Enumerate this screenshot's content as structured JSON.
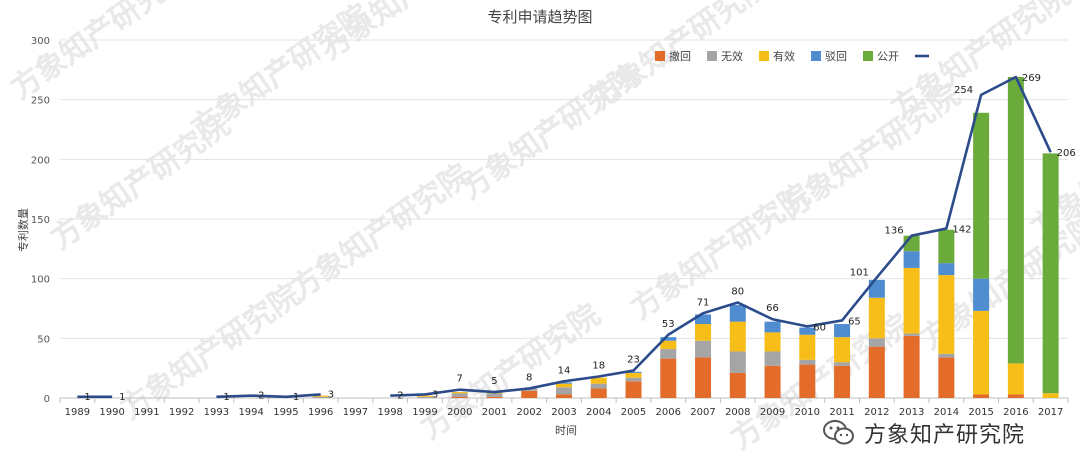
{
  "chart_data": {
    "type": "bar",
    "title": "专利申请趋势图",
    "xlabel": "时间",
    "ylabel": "专利数量",
    "ylim": [
      0,
      300
    ],
    "yticks": [
      0,
      50,
      100,
      150,
      200,
      250,
      300
    ],
    "grid": true,
    "legend_position": "top-right",
    "categories": [
      "1989",
      "1990",
      "1991",
      "1992",
      "1993",
      "1994",
      "1995",
      "1996",
      "1997",
      "1998",
      "1999",
      "2000",
      "2001",
      "2002",
      "2003",
      "2004",
      "2005",
      "2006",
      "2007",
      "2008",
      "2009",
      "2010",
      "2011",
      "2012",
      "2013",
      "2014",
      "2015",
      "2016",
      "2017"
    ],
    "series": [
      {
        "name": "撤回",
        "color": "#e46c2a",
        "values": [
          0,
          0,
          0,
          0,
          0,
          0,
          0,
          0,
          0,
          0,
          0,
          1,
          1,
          6,
          3,
          8,
          14,
          33,
          34,
          21,
          27,
          28,
          27,
          43,
          52,
          34,
          3,
          3,
          0
        ]
      },
      {
        "name": "无效",
        "color": "#a5a5a5",
        "values": [
          0,
          0,
          0,
          0,
          0,
          0,
          0,
          1,
          0,
          0,
          1,
          3,
          3,
          2,
          6,
          4,
          3,
          8,
          14,
          18,
          12,
          4,
          3,
          7,
          2,
          3,
          0,
          0,
          0
        ]
      },
      {
        "name": "有效",
        "color": "#f7bd18",
        "values": [
          0,
          0,
          0,
          0,
          0,
          0,
          0,
          1,
          0,
          0,
          1,
          1,
          1,
          0,
          3,
          5,
          4,
          7,
          14,
          25,
          16,
          21,
          21,
          34,
          55,
          66,
          70,
          26,
          4
        ]
      },
      {
        "name": "驳回",
        "color": "#4f8cd0",
        "values": [
          0,
          0,
          0,
          0,
          0,
          0,
          0,
          0,
          0,
          0,
          0,
          0,
          0,
          0,
          1,
          0,
          1,
          3,
          8,
          14,
          9,
          6,
          11,
          15,
          14,
          10,
          27,
          0,
          0
        ]
      },
      {
        "name": "公开",
        "color": "#6aab3c",
        "values": [
          0,
          0,
          0,
          0,
          0,
          0,
          0,
          0,
          0,
          0,
          0,
          0,
          0,
          0,
          0,
          0,
          0,
          0,
          0,
          0,
          0,
          0,
          0,
          0,
          13,
          28,
          139,
          240,
          201
        ]
      },
      {
        "name": "",
        "color": "#2b4b8a",
        "type": "line",
        "values": [
          1,
          1,
          null,
          null,
          1,
          2,
          1,
          3,
          null,
          2,
          3,
          7,
          5,
          8,
          14,
          18,
          23,
          53,
          71,
          80,
          66,
          60,
          65,
          101,
          136,
          142,
          254,
          269,
          206
        ],
        "labels": [
          "1",
          "1",
          "",
          "",
          "1",
          "2",
          "1",
          "3",
          "",
          "2",
          "3",
          "7",
          "5",
          "8",
          "14",
          "18",
          "23",
          "53",
          "71",
          "80",
          "66",
          "60",
          "65",
          "101",
          "136",
          "142",
          "254",
          "269",
          "206"
        ]
      }
    ]
  },
  "watermark": {
    "text": "方象知产研究院",
    "brand": "方象知产研究院",
    "brand_icon": "wechat-icon"
  }
}
